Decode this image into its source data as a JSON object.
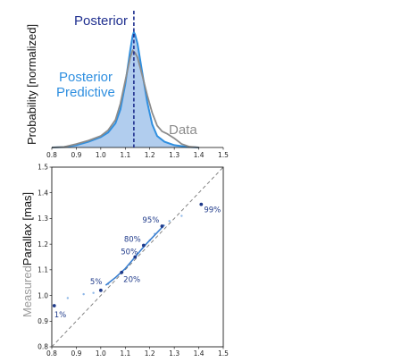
{
  "chart_data": [
    {
      "type": "area",
      "ylabel": "Probability [normalized]",
      "xlim": [
        0.8,
        1.5
      ],
      "x_ticks": [
        "0.8",
        "0.9",
        "1.0",
        "1.1",
        "1.2",
        "1.3",
        "1.4",
        "1.5"
      ],
      "grid": false,
      "marker_x": 1.135,
      "labels": {
        "posterior": "Posterior",
        "predictive_line1": "Posterior",
        "predictive_line2": "Predictive",
        "data": "Data"
      },
      "colors": {
        "posterior": "#1f2f8f",
        "predictive": "#2f8fe0",
        "fill": "#a8c8ec",
        "data": "#8c8c8c"
      },
      "series": [
        {
          "kind": "fill",
          "x": [
            0.8,
            0.85,
            0.9,
            0.95,
            1.0,
            1.03,
            1.06,
            1.08,
            1.1,
            1.12,
            1.13,
            1.135,
            1.14,
            1.15,
            1.17,
            1.19,
            1.21,
            1.23,
            1.26,
            1.3,
            1.35,
            1.4
          ],
          "y": [
            0.0,
            0.004,
            0.02,
            0.05,
            0.09,
            0.13,
            0.21,
            0.33,
            0.55,
            0.84,
            0.97,
            1.0,
            0.98,
            0.9,
            0.64,
            0.39,
            0.2,
            0.1,
            0.05,
            0.02,
            0.006,
            0.0
          ]
        },
        {
          "kind": "line",
          "x": [
            0.8,
            0.85,
            0.9,
            0.95,
            1.0,
            1.03,
            1.06,
            1.08,
            1.1,
            1.12,
            1.13,
            1.14,
            1.15,
            1.17,
            1.19,
            1.21,
            1.23,
            1.25,
            1.27,
            1.3,
            1.33,
            1.36,
            1.4
          ],
          "y": [
            0.0,
            0.005,
            0.03,
            0.06,
            0.1,
            0.15,
            0.24,
            0.38,
            0.58,
            0.78,
            0.84,
            0.82,
            0.78,
            0.62,
            0.45,
            0.3,
            0.19,
            0.14,
            0.12,
            0.08,
            0.03,
            0.008,
            0.0
          ]
        }
      ]
    },
    {
      "type": "scatter",
      "ylabel_prefix": "Measured",
      "ylabel_main": "Parallax [mas]",
      "xlim": [
        0.8,
        1.5
      ],
      "ylim": [
        0.8,
        1.5
      ],
      "x_ticks": [
        "0.8",
        "0.9",
        "1.0",
        "1.1",
        "1.2",
        "1.3",
        "1.4",
        "1.5"
      ],
      "y_ticks": [
        "0.8",
        "0.9",
        "1.0",
        "1.1",
        "1.2",
        "1.3",
        "1.4",
        "1.5"
      ],
      "grid": false,
      "diagonal": true,
      "point_color": "#1f3a8a",
      "light_color": "#8fb8e8",
      "line_color": "#3a7fd0",
      "points": [
        {
          "label": "1%",
          "x": 0.81,
          "y": 0.96
        },
        {
          "label": "5%",
          "x": 1.0,
          "y": 1.02
        },
        {
          "label": "20%",
          "x": 1.085,
          "y": 1.09
        },
        {
          "label": "50%",
          "x": 1.14,
          "y": 1.15
        },
        {
          "label": "80%",
          "x": 1.175,
          "y": 1.195
        },
        {
          "label": "95%",
          "x": 1.25,
          "y": 1.27
        },
        {
          "label": "99%",
          "x": 1.41,
          "y": 1.355
        }
      ],
      "light_points": [
        {
          "x": 0.865,
          "y": 0.99
        },
        {
          "x": 0.93,
          "y": 1.005
        },
        {
          "x": 0.97,
          "y": 1.01
        },
        {
          "x": 1.03,
          "y": 1.045
        },
        {
          "x": 1.2,
          "y": 1.215
        },
        {
          "x": 1.22,
          "y": 1.24
        },
        {
          "x": 1.28,
          "y": 1.29
        },
        {
          "x": 1.33,
          "y": 1.31
        }
      ],
      "curve": [
        {
          "x": 1.02,
          "y": 1.04
        },
        {
          "x": 1.06,
          "y": 1.07
        },
        {
          "x": 1.1,
          "y": 1.105
        },
        {
          "x": 1.14,
          "y": 1.15
        },
        {
          "x": 1.18,
          "y": 1.195
        },
        {
          "x": 1.22,
          "y": 1.235
        },
        {
          "x": 1.26,
          "y": 1.275
        }
      ]
    }
  ]
}
